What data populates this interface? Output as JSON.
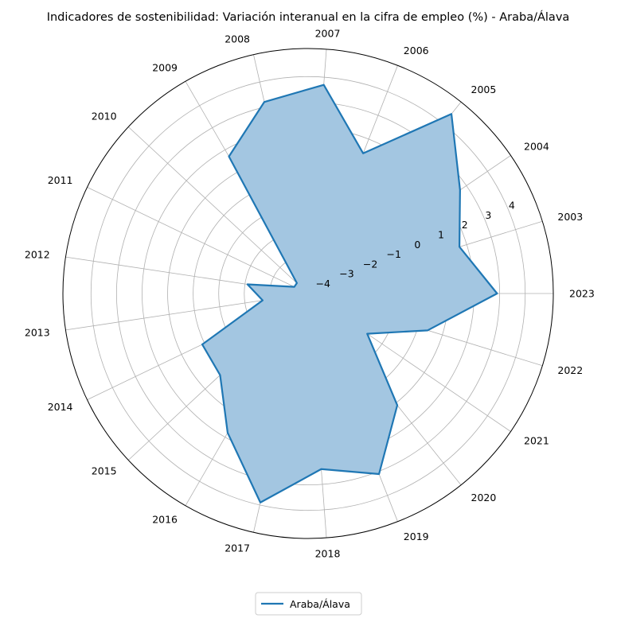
{
  "chart_data": {
    "type": "radar",
    "title": "Indicadores de sostenibilidad: Variación interanual en la cifra de empleo (%) - Araba/Álava",
    "categories": [
      "2023",
      "2003",
      "2004",
      "2005",
      "2006",
      "2007",
      "2008",
      "2009",
      "2010",
      "2011",
      "2012",
      "2013",
      "2014",
      "2015",
      "2016",
      "2017",
      "2018",
      "2019",
      "2020",
      "2021",
      "2022"
    ],
    "series": [
      {
        "name": "Araba/Álava",
        "color": "#1f77b4",
        "fill_color": "#a3c6e1",
        "values": [
          2.9,
          1.7,
          2.7,
          4.5,
          1.4,
          3.7,
          3.2,
          1.7,
          -3.9,
          -3.9,
          -2.1,
          -2.7,
          0.1,
          0.2,
          1.8,
          3.9,
          2.4,
          3.1,
          1.1,
          -1.7,
          0.4
        ]
      }
    ],
    "rlim": [
      -4.5,
      5.1
    ],
    "r_ticks": [
      "−4",
      "−3",
      "−2",
      "−1",
      "0",
      "1",
      "2",
      "3",
      "4"
    ],
    "r_tick_values": [
      -4,
      -3,
      -2,
      -1,
      0,
      1,
      2,
      3,
      4
    ],
    "grid": true,
    "legend_position": "bottom-center"
  }
}
